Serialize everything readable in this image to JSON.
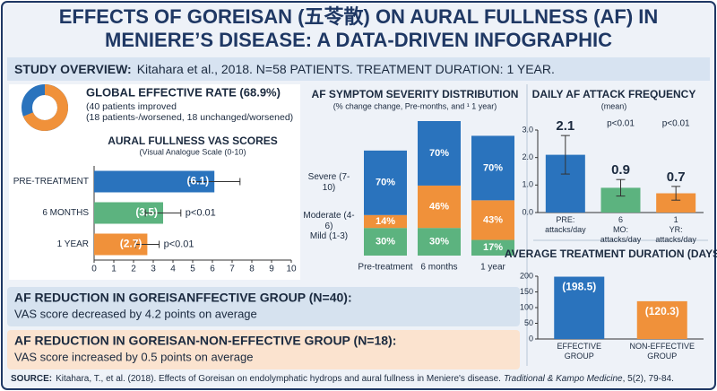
{
  "header": {
    "title_lines": [
      "EFFECTS OF GOREISAN (五苓散) ON AURAL FULLNESS (AF) IN",
      "MENIERE’S DISEASE: A DATA-DRIVEN INFOGRAPHIC"
    ]
  },
  "overview": {
    "label": "STUDY OVERVIEW:",
    "text": "Kitahara et al., 2018.  N=58 PATIENTS.  TREATMENT DURATION: 1 YEAR."
  },
  "chart_data": [
    {
      "type": "donut",
      "title": "GLOBAL EFFECTIVE RATE (68.9%)",
      "notes": [
        "(40 patients improved",
        "(18 patients-/worsened, 18 unchanged/worsened)"
      ],
      "values": [
        68.9
      ],
      "color": "#f0913a",
      "track_color": "#2a73bd"
    },
    {
      "type": "hbar",
      "title": "AURAL FULLNESS VAS SCORES",
      "subtitle": "(Visual Analogue Scale (0-10)",
      "categories": [
        "PRE-TREATMENT",
        "6 MONTHS",
        "1 YEAR"
      ],
      "values": [
        6.1,
        3.5,
        2.7
      ],
      "value_labels": [
        "(6.1)",
        "(3.5)",
        "(2.7)"
      ],
      "errors": [
        1.3,
        0.9,
        0.6
      ],
      "annotations": [
        null,
        "p<0.01",
        "p<0.01"
      ],
      "colors": [
        "#2a73bd",
        "#5cb37f",
        "#f0913a"
      ],
      "xlim": [
        0,
        10
      ],
      "xticks": [
        0,
        1,
        2,
        3,
        4,
        5,
        6,
        7,
        8,
        9,
        10
      ]
    },
    {
      "type": "stacked",
      "title": "AF SYMPTOM SEVERITY DISTRIBUTION",
      "subtitle": "(% change change, Pre-months, and ¹ 1 year)",
      "categories": [
        "Pre-treatment",
        "6 months",
        "1 year"
      ],
      "series": [
        {
          "name": "Mild (1-3)",
          "color": "#5cb37f",
          "values": [
            30,
            30,
            17
          ],
          "value_labels": [
            "30%",
            "30%",
            "17%"
          ]
        },
        {
          "name": "Moderate (4-6)",
          "color": "#f0913a",
          "values": [
            14,
            46,
            43
          ],
          "value_labels": [
            "14%",
            "46%",
            "43%"
          ]
        },
        {
          "name": "Severe (7-10)",
          "color": "#2a73bd",
          "values": [
            70,
            70,
            70
          ],
          "value_labels": [
            "70%",
            "70%",
            "70%"
          ]
        }
      ]
    },
    {
      "type": "vbar",
      "title": "DAILY AF ATTACK FREQUENCY",
      "subtitle": "(mean)",
      "categories": [
        "PRE: attacks/day",
        "6 MO: attacks/day",
        "1 YR: attacks/day"
      ],
      "values": [
        2.1,
        0.9,
        0.7
      ],
      "errors": [
        0.7,
        0.3,
        0.25
      ],
      "annotations": [
        null,
        "p<0.01",
        "p<0.01"
      ],
      "colors": [
        "#2a73bd",
        "#5cb37f",
        "#f0913a"
      ],
      "ylim": [
        0,
        3
      ],
      "yticks": [
        {
          "value": 0,
          "label": "0.0"
        },
        {
          "value": 1,
          "label": "1.0"
        },
        {
          "value": 2,
          "label": "2.0"
        },
        {
          "value": 3,
          "label": "3.0"
        }
      ]
    },
    {
      "type": "vbar",
      "title": "AVERAGE TREATMENT DURATION (DAYS)",
      "categories": [
        "EFFECTIVE GROUP",
        "NON-EFFECTIVE GROUP"
      ],
      "values": [
        198.5,
        120.3
      ],
      "value_labels": [
        "(198.5)",
        "(120.3)"
      ],
      "colors": [
        "#2a73bd",
        "#f0913a"
      ],
      "ylim": [
        0,
        200
      ],
      "yticks": [
        0,
        50,
        100,
        150,
        200
      ]
    }
  ],
  "summary_boxes": [
    {
      "title": "AF REDUCTION IN GOREISANFFECTIVE GROUP (N=40):",
      "text": "VAS score decreased by 4.2 points on average",
      "color": "#d6e2ef"
    },
    {
      "title": "AF REDUCTION IN GOREISAN-NON-EFFECTIVE GROUP (N=18):",
      "text": "VAS score increased by 0.5 points on average",
      "color": "#fbe3cf"
    }
  ],
  "source": {
    "label": "SOURCE:",
    "text": "Kitahara, T., et al. (2018). Effects of Goreisan on endolymphatic hydrops and aural fullness in Meniere's disease.",
    "journal": "Traditional & Kampo Medicine",
    "details": ", 5(2), 79-84."
  }
}
